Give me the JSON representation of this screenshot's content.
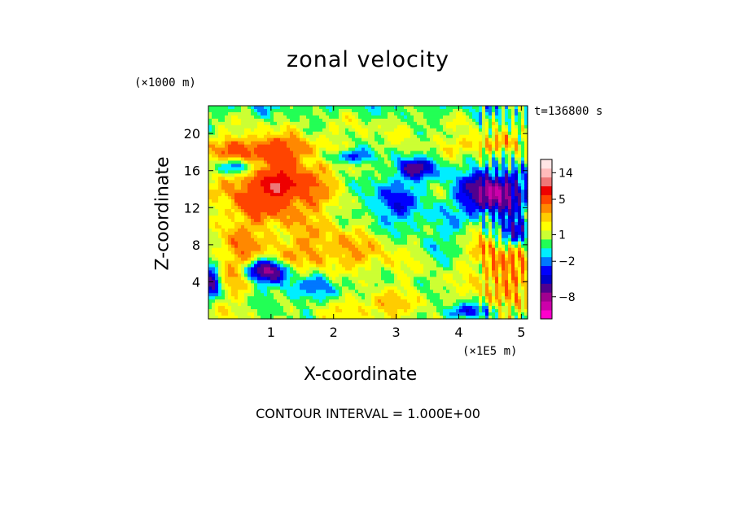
{
  "chart_data": {
    "type": "heatmap",
    "title": "zonal velocity",
    "xlabel": "X-coordinate",
    "ylabel": "Z-coordinate",
    "x_unit": "(×1E5 m)",
    "y_unit": "(×1000 m)",
    "time_label": "t=136800 s",
    "contour_interval": "CONTOUR INTERVAL = 1.000E+00",
    "xlim": [
      0,
      5.1
    ],
    "ylim": [
      0,
      23
    ],
    "x_ticks": [
      {
        "value": 1,
        "label": "1"
      },
      {
        "value": 2,
        "label": "2"
      },
      {
        "value": 3,
        "label": "3"
      },
      {
        "value": 4,
        "label": "4"
      },
      {
        "value": 5,
        "label": "5"
      }
    ],
    "y_ticks": [
      {
        "value": 4,
        "label": "4"
      },
      {
        "value": 8,
        "label": "8"
      },
      {
        "value": 12,
        "label": "12"
      },
      {
        "value": 16,
        "label": "16"
      },
      {
        "value": 20,
        "label": "20"
      }
    ],
    "colorbar": {
      "range": [
        -12,
        18
      ],
      "levels": [
        -12,
        -10,
        -8,
        -6,
        -4,
        -3,
        -2,
        -1,
        0,
        1,
        2,
        3,
        4,
        5,
        8,
        11,
        14,
        18
      ],
      "colors": [
        "#ff00cc",
        "#cc00aa",
        "#a00090",
        "#50008f",
        "#0000cc",
        "#0000ff",
        "#0077ff",
        "#00eeff",
        "#22ff55",
        "#ccff33",
        "#ffff00",
        "#ffcc00",
        "#ff8800",
        "#ff4400",
        "#ee0000",
        "#ee7777",
        "#ffbbbb",
        "#ffe5e5"
      ],
      "tick_labels": [
        {
          "value": 14,
          "label": "14"
        },
        {
          "value": 5,
          "label": "5"
        },
        {
          "value": 1,
          "label": "1"
        },
        {
          "value": -2,
          "label": "−2"
        },
        {
          "value": -8,
          "label": "−8"
        }
      ]
    },
    "grid": false,
    "field_features": [
      {
        "x": 1.1,
        "z": 14.5,
        "sx": 0.55,
        "sz": 2.6,
        "amp": 6.5
      },
      {
        "x": 1.1,
        "z": 14.2,
        "sx": 0.12,
        "sz": 0.6,
        "amp": 5
      },
      {
        "x": 1.9,
        "z": 7.0,
        "sx": 0.8,
        "sz": 2.2,
        "amp": 3
      },
      {
        "x": 0.45,
        "z": 6.5,
        "sx": 0.25,
        "sz": 4.0,
        "amp": 2.5
      },
      {
        "x": 4.7,
        "z": 6.0,
        "sx": 0.35,
        "sz": 3.5,
        "amp": 3.5
      },
      {
        "x": 2.6,
        "z": 1.5,
        "sx": 0.6,
        "sz": 1.2,
        "amp": 2.5
      },
      {
        "x": 0.7,
        "z": 18.4,
        "sx": 0.6,
        "sz": 0.9,
        "amp": 3.5
      },
      {
        "x": 4.4,
        "z": 18.8,
        "sx": 0.35,
        "sz": 0.7,
        "amp": 3
      },
      {
        "x": 0.9,
        "z": 5.2,
        "sx": 0.22,
        "sz": 0.8,
        "amp": -8
      },
      {
        "x": 0.5,
        "z": 16.4,
        "sx": 0.3,
        "sz": 0.6,
        "amp": -5
      },
      {
        "x": 4.55,
        "z": 13.5,
        "sx": 0.35,
        "sz": 1.8,
        "amp": -9
      },
      {
        "x": 3.35,
        "z": 16.2,
        "sx": 0.25,
        "sz": 0.8,
        "amp": -5
      },
      {
        "x": 4.9,
        "z": 9.5,
        "sx": 0.2,
        "sz": 1.2,
        "amp": -6
      },
      {
        "x": 2.95,
        "z": 12.5,
        "sx": 0.35,
        "sz": 2.0,
        "amp": -3.5
      },
      {
        "x": 2.2,
        "z": 17.5,
        "sx": 0.3,
        "sz": 0.5,
        "amp": -4
      },
      {
        "x": 1.7,
        "z": 3.5,
        "sx": 0.6,
        "sz": 1.5,
        "amp": -3
      },
      {
        "x": 0.05,
        "z": 4.0,
        "sx": 0.1,
        "sz": 1.2,
        "amp": -6
      },
      {
        "x": 4.1,
        "z": 0.8,
        "sx": 0.3,
        "sz": 0.6,
        "amp": -4
      },
      {
        "x": 3.7,
        "z": 9.0,
        "sx": 0.3,
        "sz": 2.0,
        "amp": -1.5
      },
      {
        "x": 2.6,
        "z": 21.5,
        "sx": 1.2,
        "sz": 1.8,
        "amp": 0.5
      }
    ]
  }
}
